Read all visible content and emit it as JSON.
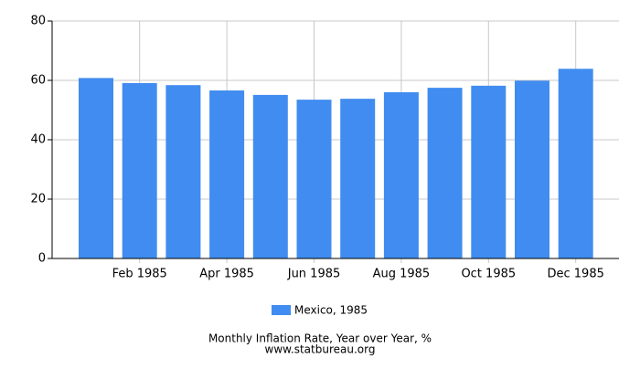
{
  "chart_data": {
    "type": "bar",
    "title": "Monthly Inflation Rate, Year over Year, %",
    "source": "www.statbureau.org",
    "categories": [
      null,
      "Feb 1985",
      null,
      "Apr 1985",
      null,
      "Jun 1985",
      null,
      "Aug 1985",
      null,
      "Oct 1985",
      null,
      "Dec 1985"
    ],
    "series": [
      {
        "name": "Mexico, 1985",
        "color": "#418cf0",
        "values": [
          60.8,
          59.1,
          58.4,
          56.6,
          55.1,
          53.5,
          53.8,
          56.0,
          57.5,
          58.2,
          59.9,
          63.9
        ]
      }
    ],
    "ylim": [
      0,
      80
    ],
    "yticks": [
      0,
      20,
      40,
      60,
      80
    ],
    "grid": true,
    "legend": "bottom"
  }
}
